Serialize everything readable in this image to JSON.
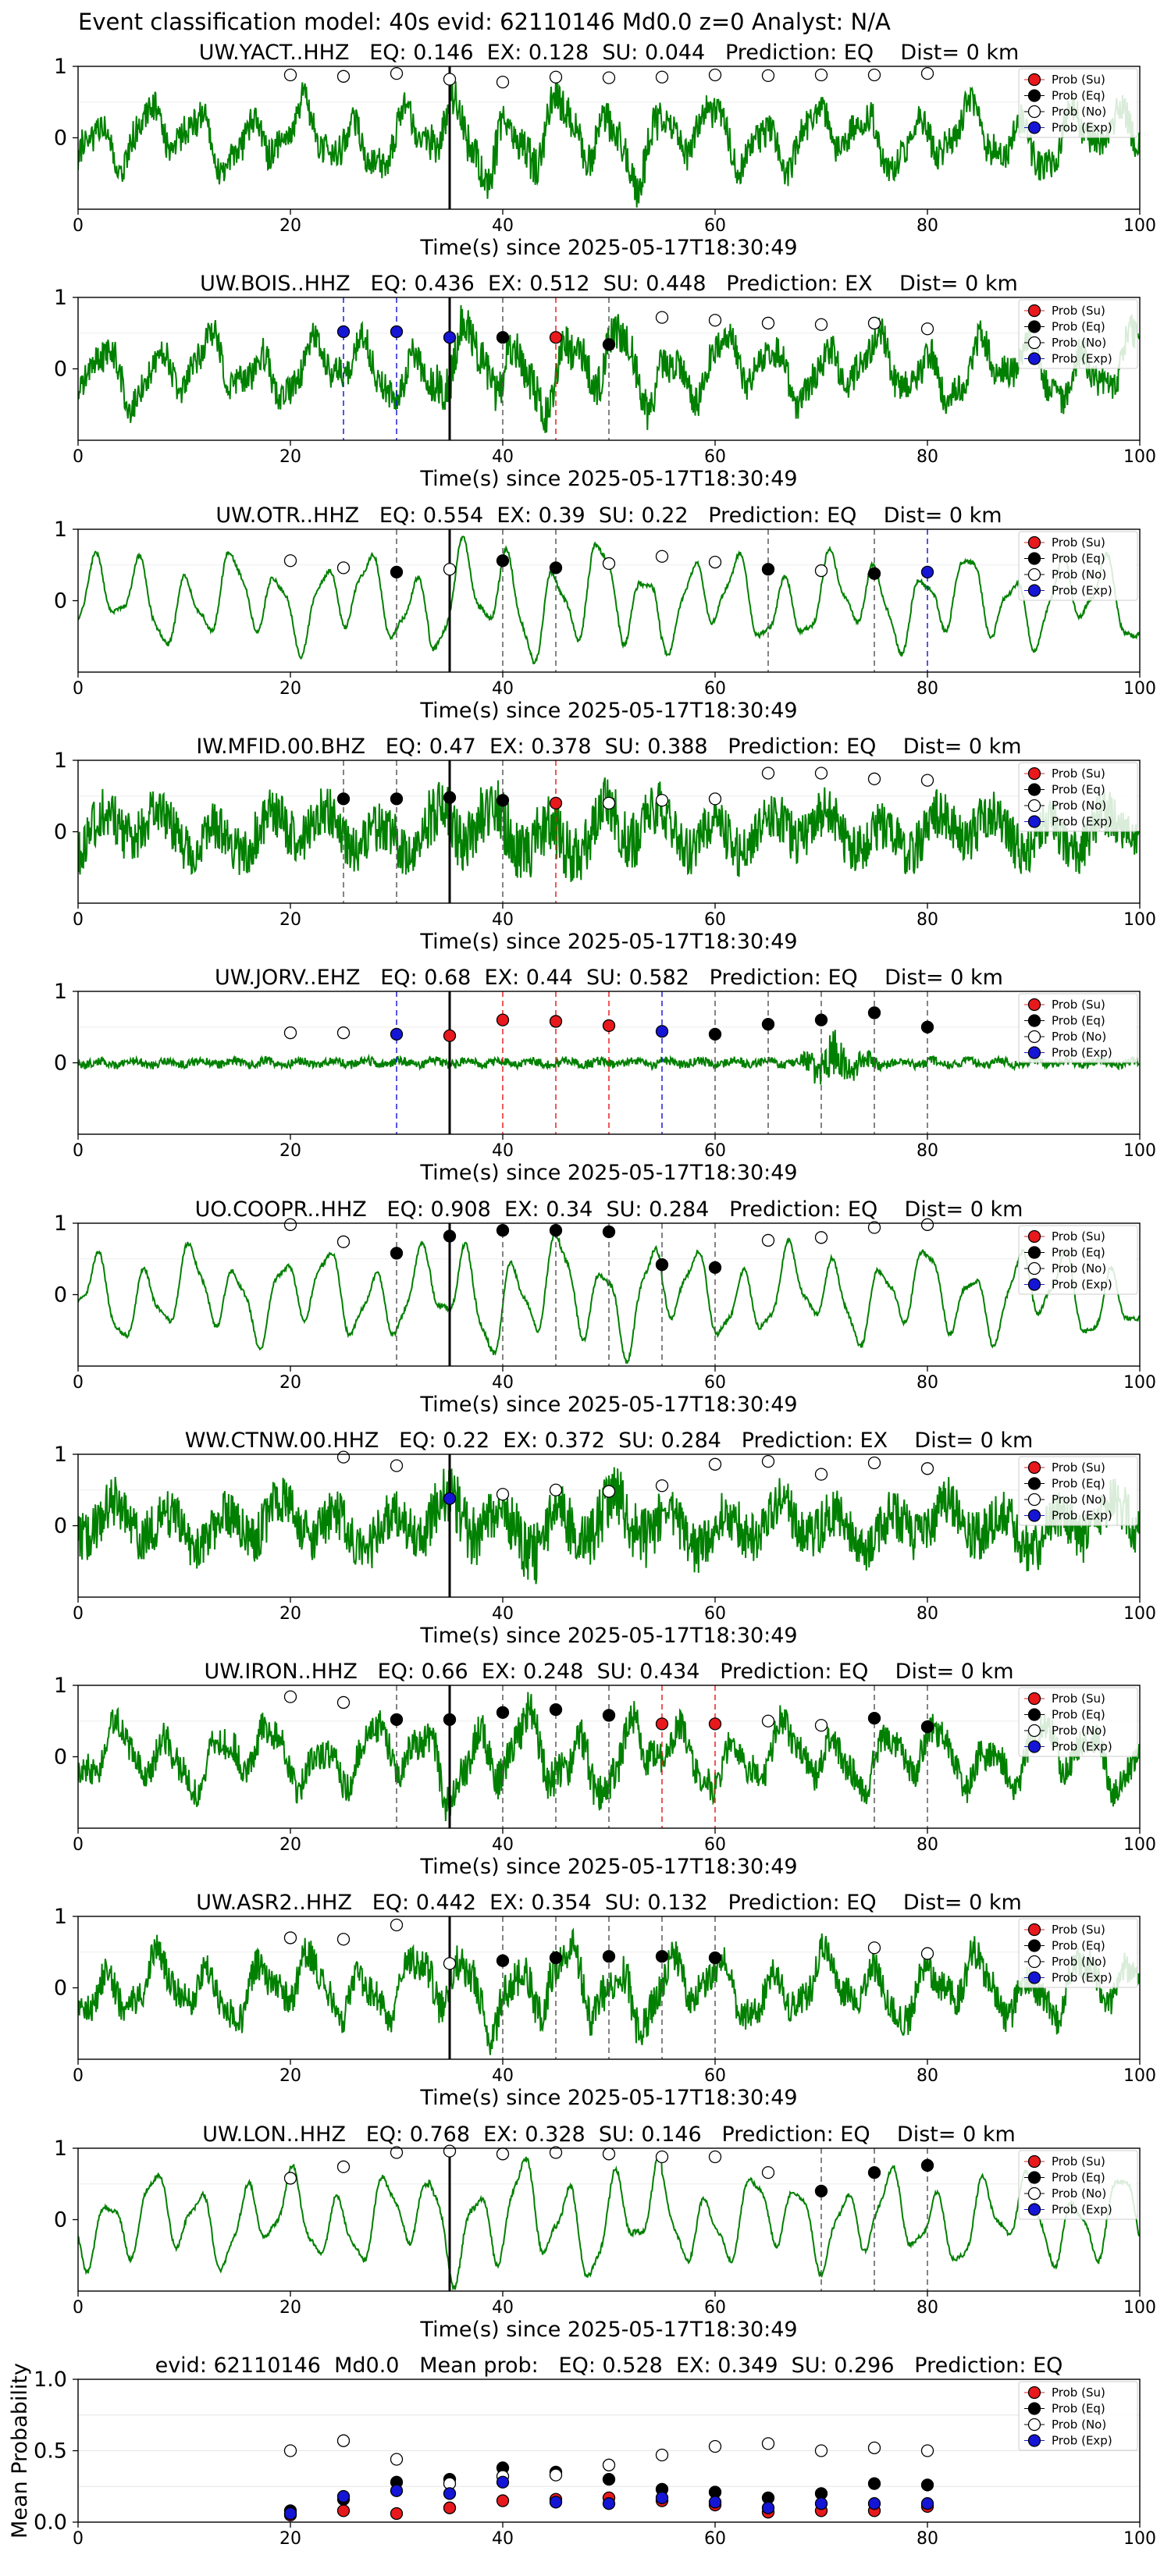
{
  "suptitle": "Event classification model: 40s evid: 62110146 Md0.0 z=0 Analyst: N/A",
  "legend_labels": [
    "Prob (Su)",
    "Prob (Eq)",
    "Prob (No)",
    "Prob (Exp)"
  ],
  "colors": {
    "waveform": "#008000",
    "su": "#e8191c",
    "eq": "#000000",
    "no": "#ffffff",
    "exp": "#1515d6",
    "origin_line": "#000000"
  },
  "chart_data": [
    {
      "type": "line",
      "station": "UW.YACT..HHZ",
      "title": "UW.YACT..HHZ   EQ: 0.146  EX: 0.128  SU: 0.044   Prediction: EQ    Dist= 0 km",
      "xlabel": "Time(s) since 2025-05-17T18:30:49",
      "xlim": [
        0,
        100
      ],
      "ylim": [
        -1,
        1
      ],
      "xticks": [
        0,
        20,
        40,
        60,
        80,
        100
      ],
      "yticks": [
        1,
        0
      ],
      "origin_time": 35,
      "waveform": {
        "style": "mixed",
        "seed": 11
      },
      "points": [
        {
          "x": 20,
          "y": 0.88,
          "c": "no"
        },
        {
          "x": 25,
          "y": 0.86,
          "c": "no"
        },
        {
          "x": 30,
          "y": 0.9,
          "c": "no"
        },
        {
          "x": 35,
          "y": 0.82,
          "c": "no"
        },
        {
          "x": 40,
          "y": 0.78,
          "c": "no"
        },
        {
          "x": 45,
          "y": 0.85,
          "c": "no"
        },
        {
          "x": 50,
          "y": 0.84,
          "c": "no"
        },
        {
          "x": 55,
          "y": 0.85,
          "c": "no"
        },
        {
          "x": 60,
          "y": 0.88,
          "c": "no"
        },
        {
          "x": 65,
          "y": 0.87,
          "c": "no"
        },
        {
          "x": 70,
          "y": 0.88,
          "c": "no"
        },
        {
          "x": 75,
          "y": 0.88,
          "c": "no"
        },
        {
          "x": 80,
          "y": 0.9,
          "c": "no"
        }
      ]
    },
    {
      "type": "line",
      "station": "UW.BOIS..HHZ",
      "title": "UW.BOIS..HHZ   EQ: 0.436  EX: 0.512  SU: 0.448   Prediction: EX    Dist= 0 km",
      "xlabel": "Time(s) since 2025-05-17T18:30:49",
      "xlim": [
        0,
        100
      ],
      "ylim": [
        -1,
        1
      ],
      "xticks": [
        0,
        20,
        40,
        60,
        80,
        100
      ],
      "yticks": [
        1,
        0
      ],
      "origin_time": 35,
      "waveform": {
        "style": "mixed",
        "seed": 23
      },
      "points": [
        {
          "x": 25,
          "y": 0.52,
          "c": "exp"
        },
        {
          "x": 30,
          "y": 0.52,
          "c": "exp"
        },
        {
          "x": 35,
          "y": 0.44,
          "c": "exp"
        },
        {
          "x": 40,
          "y": 0.44,
          "c": "eq"
        },
        {
          "x": 45,
          "y": 0.44,
          "c": "su"
        },
        {
          "x": 50,
          "y": 0.34,
          "c": "eq"
        },
        {
          "x": 55,
          "y": 0.72,
          "c": "no"
        },
        {
          "x": 60,
          "y": 0.68,
          "c": "no"
        },
        {
          "x": 65,
          "y": 0.64,
          "c": "no"
        },
        {
          "x": 70,
          "y": 0.62,
          "c": "no"
        },
        {
          "x": 75,
          "y": 0.64,
          "c": "no"
        },
        {
          "x": 80,
          "y": 0.56,
          "c": "no"
        }
      ]
    },
    {
      "type": "line",
      "station": "UW.OTR..HHZ",
      "title": "UW.OTR..HHZ   EQ: 0.554  EX: 0.39  SU: 0.22   Prediction: EQ    Dist= 0 km",
      "xlabel": "Time(s) since 2025-05-17T18:30:49",
      "xlim": [
        0,
        100
      ],
      "ylim": [
        -1,
        1
      ],
      "xticks": [
        0,
        20,
        40,
        60,
        80,
        100
      ],
      "yticks": [
        1,
        0
      ],
      "origin_time": 35,
      "waveform": {
        "style": "smooth",
        "seed": 37
      },
      "points": [
        {
          "x": 20,
          "y": 0.56,
          "c": "no"
        },
        {
          "x": 25,
          "y": 0.46,
          "c": "no"
        },
        {
          "x": 30,
          "y": 0.4,
          "c": "eq"
        },
        {
          "x": 35,
          "y": 0.44,
          "c": "no"
        },
        {
          "x": 40,
          "y": 0.56,
          "c": "eq"
        },
        {
          "x": 45,
          "y": 0.46,
          "c": "eq"
        },
        {
          "x": 50,
          "y": 0.52,
          "c": "no"
        },
        {
          "x": 55,
          "y": 0.62,
          "c": "no"
        },
        {
          "x": 60,
          "y": 0.54,
          "c": "no"
        },
        {
          "x": 65,
          "y": 0.44,
          "c": "eq"
        },
        {
          "x": 70,
          "y": 0.42,
          "c": "no"
        },
        {
          "x": 75,
          "y": 0.38,
          "c": "eq"
        },
        {
          "x": 80,
          "y": 0.4,
          "c": "exp"
        }
      ]
    },
    {
      "type": "line",
      "station": "IW.MFID.00.BHZ",
      "title": "IW.MFID.00.BHZ   EQ: 0.47  EX: 0.378  SU: 0.388   Prediction: EQ    Dist= 0 km",
      "xlabel": "Time(s) since 2025-05-17T18:30:49",
      "xlim": [
        0,
        100
      ],
      "ylim": [
        -1,
        1
      ],
      "xticks": [
        0,
        20,
        40,
        60,
        80,
        100
      ],
      "yticks": [
        1,
        0
      ],
      "origin_time": 35,
      "waveform": {
        "style": "noisy",
        "seed": 41
      },
      "points": [
        {
          "x": 25,
          "y": 0.46,
          "c": "eq"
        },
        {
          "x": 30,
          "y": 0.46,
          "c": "eq"
        },
        {
          "x": 35,
          "y": 0.48,
          "c": "eq"
        },
        {
          "x": 40,
          "y": 0.44,
          "c": "eq"
        },
        {
          "x": 45,
          "y": 0.4,
          "c": "su"
        },
        {
          "x": 50,
          "y": 0.4,
          "c": "no"
        },
        {
          "x": 55,
          "y": 0.44,
          "c": "no"
        },
        {
          "x": 60,
          "y": 0.46,
          "c": "no"
        },
        {
          "x": 65,
          "y": 0.82,
          "c": "no"
        },
        {
          "x": 70,
          "y": 0.82,
          "c": "no"
        },
        {
          "x": 75,
          "y": 0.74,
          "c": "no"
        },
        {
          "x": 80,
          "y": 0.72,
          "c": "no"
        }
      ]
    },
    {
      "type": "line",
      "station": "UW.JORV..EHZ",
      "title": "UW.JORV..EHZ   EQ: 0.68  EX: 0.44  SU: 0.582   Prediction: EQ    Dist= 0 km",
      "xlabel": "Time(s) since 2025-05-17T18:30:49",
      "xlim": [
        0,
        100
      ],
      "ylim": [
        -1,
        1
      ],
      "xticks": [
        0,
        20,
        40,
        60,
        80,
        100
      ],
      "yticks": [
        1,
        0
      ],
      "origin_time": 35,
      "waveform": {
        "style": "quiet",
        "seed": 53
      },
      "points": [
        {
          "x": 20,
          "y": 0.42,
          "c": "no"
        },
        {
          "x": 25,
          "y": 0.42,
          "c": "no"
        },
        {
          "x": 30,
          "y": 0.4,
          "c": "exp"
        },
        {
          "x": 35,
          "y": 0.38,
          "c": "su"
        },
        {
          "x": 40,
          "y": 0.6,
          "c": "su"
        },
        {
          "x": 45,
          "y": 0.58,
          "c": "su"
        },
        {
          "x": 50,
          "y": 0.52,
          "c": "su"
        },
        {
          "x": 55,
          "y": 0.44,
          "c": "exp"
        },
        {
          "x": 60,
          "y": 0.4,
          "c": "eq"
        },
        {
          "x": 65,
          "y": 0.54,
          "c": "eq"
        },
        {
          "x": 70,
          "y": 0.6,
          "c": "eq"
        },
        {
          "x": 75,
          "y": 0.7,
          "c": "eq"
        },
        {
          "x": 80,
          "y": 0.5,
          "c": "eq"
        }
      ]
    },
    {
      "type": "line",
      "station": "UO.COOPR..HHZ",
      "title": "UO.COOPR..HHZ   EQ: 0.908  EX: 0.34  SU: 0.284   Prediction: EQ    Dist= 0 km",
      "xlabel": "Time(s) since 2025-05-17T18:30:49",
      "xlim": [
        0,
        100
      ],
      "ylim": [
        -1,
        1
      ],
      "xticks": [
        0,
        20,
        40,
        60,
        80,
        100
      ],
      "yticks": [
        1,
        0
      ],
      "origin_time": 35,
      "waveform": {
        "style": "smooth",
        "seed": 67
      },
      "points": [
        {
          "x": 20,
          "y": 0.98,
          "c": "no"
        },
        {
          "x": 25,
          "y": 0.74,
          "c": "no"
        },
        {
          "x": 30,
          "y": 0.58,
          "c": "eq"
        },
        {
          "x": 35,
          "y": 0.82,
          "c": "eq"
        },
        {
          "x": 40,
          "y": 0.9,
          "c": "eq"
        },
        {
          "x": 45,
          "y": 0.9,
          "c": "eq"
        },
        {
          "x": 50,
          "y": 0.88,
          "c": "eq"
        },
        {
          "x": 55,
          "y": 0.42,
          "c": "eq"
        },
        {
          "x": 60,
          "y": 0.38,
          "c": "eq"
        },
        {
          "x": 65,
          "y": 0.76,
          "c": "no"
        },
        {
          "x": 70,
          "y": 0.8,
          "c": "no"
        },
        {
          "x": 75,
          "y": 0.94,
          "c": "no"
        },
        {
          "x": 80,
          "y": 0.98,
          "c": "no"
        }
      ]
    },
    {
      "type": "line",
      "station": "WW.CTNW.00.HHZ",
      "title": "WW.CTNW.00.HHZ   EQ: 0.22  EX: 0.372  SU: 0.284   Prediction: EX    Dist= 0 km",
      "xlabel": "Time(s) since 2025-05-17T18:30:49",
      "xlim": [
        0,
        100
      ],
      "ylim": [
        -1,
        1
      ],
      "xticks": [
        0,
        20,
        40,
        60,
        80,
        100
      ],
      "yticks": [
        1,
        0
      ],
      "origin_time": 35,
      "waveform": {
        "style": "noisy",
        "seed": 79
      },
      "points": [
        {
          "x": 25,
          "y": 0.96,
          "c": "no"
        },
        {
          "x": 30,
          "y": 0.84,
          "c": "no"
        },
        {
          "x": 35,
          "y": 0.38,
          "c": "exp"
        },
        {
          "x": 40,
          "y": 0.44,
          "c": "no"
        },
        {
          "x": 45,
          "y": 0.5,
          "c": "no"
        },
        {
          "x": 50,
          "y": 0.48,
          "c": "no"
        },
        {
          "x": 55,
          "y": 0.56,
          "c": "no"
        },
        {
          "x": 60,
          "y": 0.86,
          "c": "no"
        },
        {
          "x": 65,
          "y": 0.9,
          "c": "no"
        },
        {
          "x": 70,
          "y": 0.72,
          "c": "no"
        },
        {
          "x": 75,
          "y": 0.88,
          "c": "no"
        },
        {
          "x": 80,
          "y": 0.8,
          "c": "no"
        }
      ]
    },
    {
      "type": "line",
      "station": "UW.IRON..HHZ",
      "title": "UW.IRON..HHZ   EQ: 0.66  EX: 0.248  SU: 0.434   Prediction: EQ    Dist= 0 km",
      "xlabel": "Time(s) since 2025-05-17T18:30:49",
      "xlim": [
        0,
        100
      ],
      "ylim": [
        -1,
        1
      ],
      "xticks": [
        0,
        20,
        40,
        60,
        80,
        100
      ],
      "yticks": [
        1,
        0
      ],
      "origin_time": 35,
      "waveform": {
        "style": "mixed",
        "seed": 83
      },
      "points": [
        {
          "x": 20,
          "y": 0.84,
          "c": "no"
        },
        {
          "x": 25,
          "y": 0.76,
          "c": "no"
        },
        {
          "x": 30,
          "y": 0.52,
          "c": "eq"
        },
        {
          "x": 35,
          "y": 0.52,
          "c": "eq"
        },
        {
          "x": 40,
          "y": 0.62,
          "c": "eq"
        },
        {
          "x": 45,
          "y": 0.66,
          "c": "eq"
        },
        {
          "x": 50,
          "y": 0.58,
          "c": "eq"
        },
        {
          "x": 55,
          "y": 0.46,
          "c": "su"
        },
        {
          "x": 60,
          "y": 0.46,
          "c": "su"
        },
        {
          "x": 65,
          "y": 0.5,
          "c": "no"
        },
        {
          "x": 70,
          "y": 0.44,
          "c": "no"
        },
        {
          "x": 75,
          "y": 0.54,
          "c": "eq"
        },
        {
          "x": 80,
          "y": 0.42,
          "c": "eq"
        }
      ]
    },
    {
      "type": "line",
      "station": "UW.ASR2..HHZ",
      "title": "UW.ASR2..HHZ   EQ: 0.442  EX: 0.354  SU: 0.132   Prediction: EQ    Dist= 0 km",
      "xlabel": "Time(s) since 2025-05-17T18:30:49",
      "xlim": [
        0,
        100
      ],
      "ylim": [
        -1,
        1
      ],
      "xticks": [
        0,
        20,
        40,
        60,
        80,
        100
      ],
      "yticks": [
        1,
        0
      ],
      "origin_time": 35,
      "waveform": {
        "style": "mixed",
        "seed": 97
      },
      "points": [
        {
          "x": 20,
          "y": 0.7,
          "c": "no"
        },
        {
          "x": 25,
          "y": 0.68,
          "c": "no"
        },
        {
          "x": 30,
          "y": 0.88,
          "c": "no"
        },
        {
          "x": 35,
          "y": 0.34,
          "c": "no"
        },
        {
          "x": 40,
          "y": 0.38,
          "c": "eq"
        },
        {
          "x": 45,
          "y": 0.42,
          "c": "eq"
        },
        {
          "x": 50,
          "y": 0.44,
          "c": "eq"
        },
        {
          "x": 55,
          "y": 0.44,
          "c": "eq"
        },
        {
          "x": 60,
          "y": 0.42,
          "c": "eq"
        },
        {
          "x": 75,
          "y": 0.56,
          "c": "no"
        },
        {
          "x": 80,
          "y": 0.48,
          "c": "no"
        }
      ]
    },
    {
      "type": "line",
      "station": "UW.LON..HHZ",
      "title": "UW.LON..HHZ   EQ: 0.768  EX: 0.328  SU: 0.146   Prediction: EQ    Dist= 0 km",
      "xlabel": "Time(s) since 2025-05-17T18:30:49",
      "xlim": [
        0,
        100
      ],
      "ylim": [
        -1,
        1
      ],
      "xticks": [
        0,
        20,
        40,
        60,
        80,
        100
      ],
      "yticks": [
        1,
        0
      ],
      "origin_time": 35,
      "waveform": {
        "style": "smooth",
        "seed": 101
      },
      "points": [
        {
          "x": 20,
          "y": 0.58,
          "c": "no"
        },
        {
          "x": 25,
          "y": 0.74,
          "c": "no"
        },
        {
          "x": 30,
          "y": 0.94,
          "c": "no"
        },
        {
          "x": 35,
          "y": 0.96,
          "c": "no"
        },
        {
          "x": 40,
          "y": 0.92,
          "c": "no"
        },
        {
          "x": 45,
          "y": 0.94,
          "c": "no"
        },
        {
          "x": 50,
          "y": 0.92,
          "c": "no"
        },
        {
          "x": 55,
          "y": 0.88,
          "c": "no"
        },
        {
          "x": 60,
          "y": 0.88,
          "c": "no"
        },
        {
          "x": 65,
          "y": 0.66,
          "c": "no"
        },
        {
          "x": 70,
          "y": 0.4,
          "c": "eq"
        },
        {
          "x": 75,
          "y": 0.66,
          "c": "eq"
        },
        {
          "x": 80,
          "y": 0.76,
          "c": "eq"
        }
      ]
    },
    {
      "type": "scatter",
      "title": "evid: 62110146  Md0.0   Mean prob:   EQ: 0.528  EX: 0.349  SU: 0.296   Prediction: EQ",
      "ylabel": "Mean Probability",
      "xlim": [
        0,
        100
      ],
      "ylim": [
        0,
        1
      ],
      "xticks": [
        0,
        20,
        40,
        60,
        80,
        100
      ],
      "yticks": [
        0,
        0.5,
        1
      ],
      "ytick_labels": [
        "0.0",
        "0.5",
        "1.0"
      ],
      "x": [
        20,
        25,
        30,
        35,
        40,
        45,
        50,
        55,
        60,
        65,
        70,
        75,
        80
      ],
      "series": [
        {
          "name": "Prob (Su)",
          "key": "su",
          "values": [
            0.05,
            0.08,
            0.06,
            0.1,
            0.15,
            0.16,
            0.17,
            0.15,
            0.12,
            0.07,
            0.08,
            0.08,
            0.11
          ]
        },
        {
          "name": "Prob (Eq)",
          "key": "eq",
          "values": [
            0.08,
            0.16,
            0.28,
            0.3,
            0.38,
            0.35,
            0.3,
            0.23,
            0.21,
            0.17,
            0.2,
            0.27,
            0.26
          ]
        },
        {
          "name": "Prob (No)",
          "key": "no",
          "values": [
            0.5,
            0.57,
            0.44,
            0.27,
            0.32,
            0.33,
            0.4,
            0.47,
            0.53,
            0.55,
            0.5,
            0.52,
            0.5
          ]
        },
        {
          "name": "Prob (Exp)",
          "key": "exp",
          "values": [
            0.06,
            0.18,
            0.22,
            0.2,
            0.28,
            0.14,
            0.13,
            0.17,
            0.14,
            0.1,
            0.13,
            0.13,
            0.13
          ]
        }
      ]
    }
  ]
}
